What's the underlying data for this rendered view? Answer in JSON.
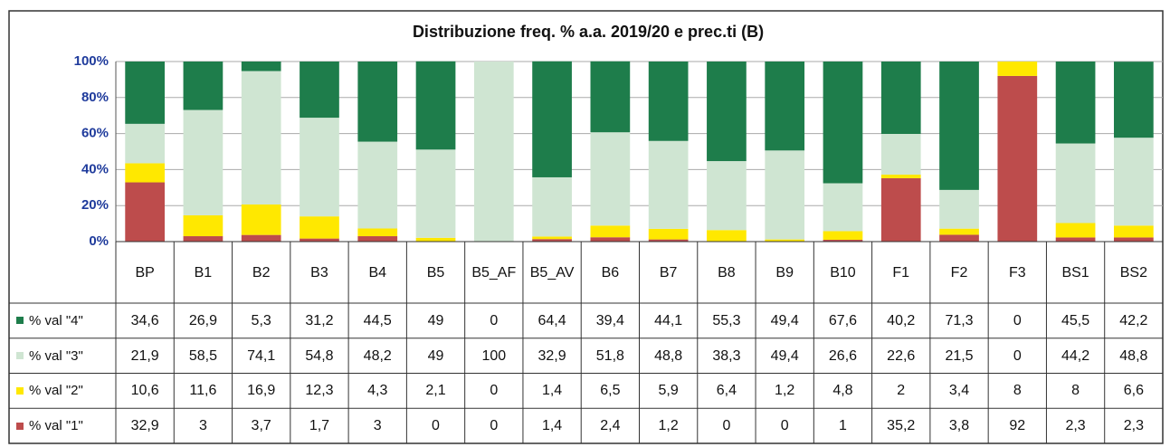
{
  "chart_data": {
    "type": "bar",
    "stacked": true,
    "title": "Distribuzione freq. % a.a. 2019/20 e prec.ti (B)",
    "categories": [
      "BP",
      "B1",
      "B2",
      "B3",
      "B4",
      "B5",
      "B5_AF",
      "B5_AV",
      "B6",
      "B7",
      "B8",
      "B9",
      "B10",
      "F1",
      "F2",
      "F3",
      "BS1",
      "BS2"
    ],
    "series": [
      {
        "name": "% val \"4\"",
        "color": "#1e7d4b",
        "values": [
          34.6,
          26.9,
          5.3,
          31.2,
          44.5,
          49,
          0,
          64.4,
          39.4,
          44.1,
          55.3,
          49.4,
          67.6,
          40.2,
          71.3,
          0,
          45.5,
          42.2
        ],
        "value_labels": [
          "34,6",
          "26,9",
          "5,3",
          "31,2",
          "44,5",
          "49",
          "0",
          "64,4",
          "39,4",
          "44,1",
          "55,3",
          "49,4",
          "67,6",
          "40,2",
          "71,3",
          "0",
          "45,5",
          "42,2"
        ]
      },
      {
        "name": "% val \"3\"",
        "color": "#cfe5d2",
        "values": [
          21.9,
          58.5,
          74.1,
          54.8,
          48.2,
          49,
          100,
          32.9,
          51.8,
          48.8,
          38.3,
          49.4,
          26.6,
          22.6,
          21.5,
          0,
          44.2,
          48.8
        ],
        "value_labels": [
          "21,9",
          "58,5",
          "74,1",
          "54,8",
          "48,2",
          "49",
          "100",
          "32,9",
          "51,8",
          "48,8",
          "38,3",
          "49,4",
          "26,6",
          "22,6",
          "21,5",
          "0",
          "44,2",
          "48,8"
        ]
      },
      {
        "name": "% val \"2\"",
        "color": "#ffe800",
        "values": [
          10.6,
          11.6,
          16.9,
          12.3,
          4.3,
          2.1,
          0,
          1.4,
          6.5,
          5.9,
          6.4,
          1.2,
          4.8,
          2,
          3.4,
          8,
          8,
          6.6
        ],
        "value_labels": [
          "10,6",
          "11,6",
          "16,9",
          "12,3",
          "4,3",
          "2,1",
          "0",
          "1,4",
          "6,5",
          "5,9",
          "6,4",
          "1,2",
          "4,8",
          "2",
          "3,4",
          "8",
          "8",
          "6,6"
        ]
      },
      {
        "name": "% val \"1\"",
        "color": "#bd4c4c",
        "values": [
          32.9,
          3,
          3.7,
          1.7,
          3,
          0,
          0,
          1.4,
          2.4,
          1.2,
          0,
          0,
          1,
          35.2,
          3.8,
          92,
          2.3,
          2.3
        ],
        "value_labels": [
          "32,9",
          "3",
          "3,7",
          "1,7",
          "3",
          "0",
          "0",
          "1,4",
          "2,4",
          "1,2",
          "0",
          "0",
          "1",
          "35,2",
          "3,8",
          "92",
          "2,3",
          "2,3"
        ]
      }
    ],
    "ylim": [
      0,
      100
    ],
    "yticks": [
      {
        "value": 0,
        "label": "0%"
      },
      {
        "value": 20,
        "label": "20%"
      },
      {
        "value": 40,
        "label": "40%"
      },
      {
        "value": 60,
        "label": "60%"
      },
      {
        "value": 80,
        "label": "80%"
      },
      {
        "value": 100,
        "label": "100%"
      }
    ],
    "grid": true
  }
}
